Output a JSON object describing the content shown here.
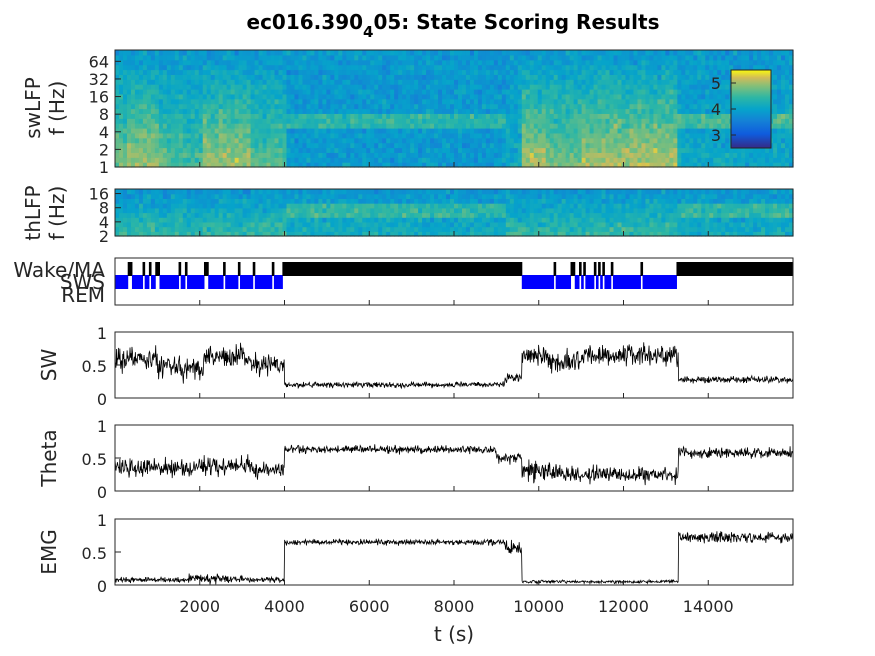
{
  "chart_data": {
    "type": "multi-panel",
    "title": {
      "main": "ec016.390",
      "sub": "4",
      "tail": "05: State Scoring Results"
    },
    "x": {
      "label": "t (s)",
      "lim": [
        0,
        16000
      ],
      "ticks": [
        2000,
        4000,
        6000,
        8000,
        10000,
        12000,
        14000
      ]
    },
    "panels": [
      {
        "id": "swlfp",
        "type": "heatmap",
        "ylabel": [
          "swLFP",
          "f (Hz)"
        ],
        "yscale": "log",
        "ylim": [
          1,
          100
        ],
        "yticks": [
          1,
          2,
          4,
          8,
          16,
          32,
          64
        ],
        "colorbar": {
          "ticks": [
            3,
            4,
            5
          ],
          "lim": [
            2.5,
            5.5
          ]
        }
      },
      {
        "id": "thlfp",
        "type": "heatmap",
        "ylabel": [
          "thLFP",
          "f (Hz)"
        ],
        "yscale": "log",
        "ylim": [
          2,
          20
        ],
        "yticks": [
          2,
          4,
          8,
          16
        ]
      },
      {
        "id": "states",
        "type": "state-raster",
        "rows": [
          "Wake/MA",
          "SWS",
          "REM"
        ],
        "colors": {
          "Wake/MA": "#000000",
          "SWS": "#0000ff",
          "REM": "#ff0000"
        }
      },
      {
        "id": "sw",
        "type": "line",
        "ylabel": "SW",
        "ylim": [
          0,
          1
        ],
        "yticks": [
          0,
          0.5,
          1
        ],
        "tickLabels": [
          "0",
          "0.5",
          "1"
        ],
        "segments": [
          {
            "t": [
              0,
              300
            ],
            "mean": 0.55,
            "sd": 0.25
          },
          {
            "t": [
              300,
              1000
            ],
            "mean": 0.62,
            "sd": 0.2
          },
          {
            "t": [
              1000,
              1600
            ],
            "mean": 0.5,
            "sd": 0.22
          },
          {
            "t": [
              1600,
              2100
            ],
            "mean": 0.45,
            "sd": 0.22
          },
          {
            "t": [
              2100,
              3200
            ],
            "mean": 0.62,
            "sd": 0.2
          },
          {
            "t": [
              3200,
              4000
            ],
            "mean": 0.5,
            "sd": 0.2
          },
          {
            "t": [
              4000,
              9200
            ],
            "mean": 0.2,
            "sd": 0.05
          },
          {
            "t": [
              9200,
              9600
            ],
            "mean": 0.3,
            "sd": 0.08
          },
          {
            "t": [
              9600,
              10200
            ],
            "mean": 0.65,
            "sd": 0.18
          },
          {
            "t": [
              10200,
              11000
            ],
            "mean": 0.55,
            "sd": 0.22
          },
          {
            "t": [
              11000,
              13300
            ],
            "mean": 0.65,
            "sd": 0.18
          },
          {
            "t": [
              13300,
              16000
            ],
            "mean": 0.28,
            "sd": 0.06
          }
        ]
      },
      {
        "id": "theta",
        "type": "line",
        "ylabel": "Theta",
        "ylim": [
          0,
          1
        ],
        "yticks": [
          0,
          0.5,
          1
        ],
        "tickLabels": [
          "0",
          "0.5",
          "1"
        ],
        "segments": [
          {
            "t": [
              0,
              1000
            ],
            "mean": 0.35,
            "sd": 0.18
          },
          {
            "t": [
              1000,
              2000
            ],
            "mean": 0.35,
            "sd": 0.15
          },
          {
            "t": [
              2000,
              3200
            ],
            "mean": 0.38,
            "sd": 0.18
          },
          {
            "t": [
              3200,
              4000
            ],
            "mean": 0.32,
            "sd": 0.15
          },
          {
            "t": [
              4000,
              9000
            ],
            "mean": 0.63,
            "sd": 0.07
          },
          {
            "t": [
              9000,
              9600
            ],
            "mean": 0.5,
            "sd": 0.1
          },
          {
            "t": [
              9600,
              10500
            ],
            "mean": 0.3,
            "sd": 0.18
          },
          {
            "t": [
              10500,
              13300
            ],
            "mean": 0.25,
            "sd": 0.15
          },
          {
            "t": [
              13300,
              16000
            ],
            "mean": 0.58,
            "sd": 0.1
          }
        ]
      },
      {
        "id": "emg",
        "type": "line",
        "ylabel": "EMG",
        "ylim": [
          0,
          1
        ],
        "yticks": [
          0,
          0.5,
          1
        ],
        "tickLabels": [
          "0",
          "0.5",
          "1"
        ],
        "segments": [
          {
            "t": [
              0,
              1700
            ],
            "mean": 0.08,
            "sd": 0.05
          },
          {
            "t": [
              1700,
              3000
            ],
            "mean": 0.1,
            "sd": 0.08
          },
          {
            "t": [
              3000,
              4000
            ],
            "mean": 0.08,
            "sd": 0.05
          },
          {
            "t": [
              4000,
              9200
            ],
            "mean": 0.65,
            "sd": 0.05
          },
          {
            "t": [
              9200,
              9600
            ],
            "mean": 0.55,
            "sd": 0.15
          },
          {
            "t": [
              9600,
              13300
            ],
            "mean": 0.05,
            "sd": 0.03
          },
          {
            "t": [
              13300,
              16000
            ],
            "mean": 0.72,
            "sd": 0.1
          }
        ]
      }
    ]
  }
}
